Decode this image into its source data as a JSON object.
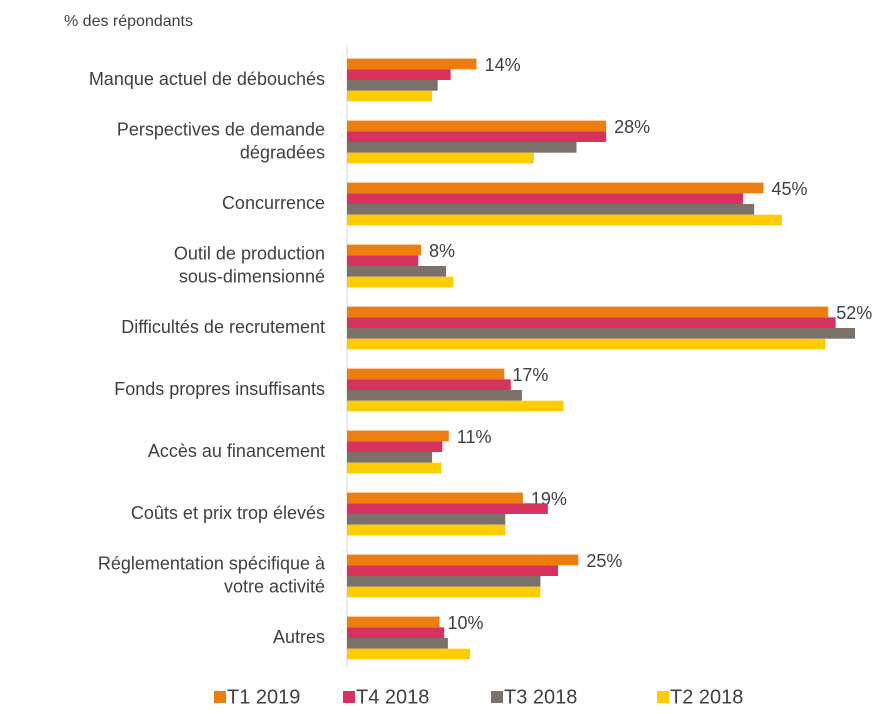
{
  "chart_data": {
    "type": "hbar",
    "subtitle": "% des répondants",
    "categories": [
      "Manque actuel de débouchés",
      "Perspectives de demande\ndégradées",
      "Concurrence",
      "Outil de production\nsous-dimensionné",
      "Difficultés de recrutement",
      "Fonds propres insuffisants",
      "Accès au financement",
      "Coûts et prix trop élevés",
      "Réglementation spécifique à\nvotre activité",
      "Autres"
    ],
    "series": [
      {
        "name": "T1 2019",
        "color": "#ED7D0E",
        "values": [
          14,
          28,
          45,
          8,
          52,
          17,
          11,
          19,
          25,
          10
        ],
        "value_labels": [
          "14%",
          "28%",
          "45%",
          "8%",
          "52%",
          "17%",
          "11%",
          "19%",
          "25%",
          "10%"
        ]
      },
      {
        "name": "T4 2018",
        "color": "#D6325E",
        "values": [
          11.2,
          28,
          42.8,
          7.7,
          52.8,
          17.7,
          10.3,
          21.7,
          22.8,
          10.5
        ]
      },
      {
        "name": "T3 2018",
        "color": "#7B716A",
        "values": [
          9.8,
          24.8,
          44,
          10.7,
          54.9,
          18.9,
          9.2,
          17.1,
          20.9,
          10.9
        ]
      },
      {
        "name": "T2 2018",
        "color": "#FFCC00",
        "values": [
          9.2,
          20.2,
          47,
          11.5,
          51.7,
          23.4,
          10.2,
          17.1,
          20.9,
          13.3
        ]
      }
    ],
    "xlim": [
      0,
      55
    ],
    "legend": "bottom"
  }
}
